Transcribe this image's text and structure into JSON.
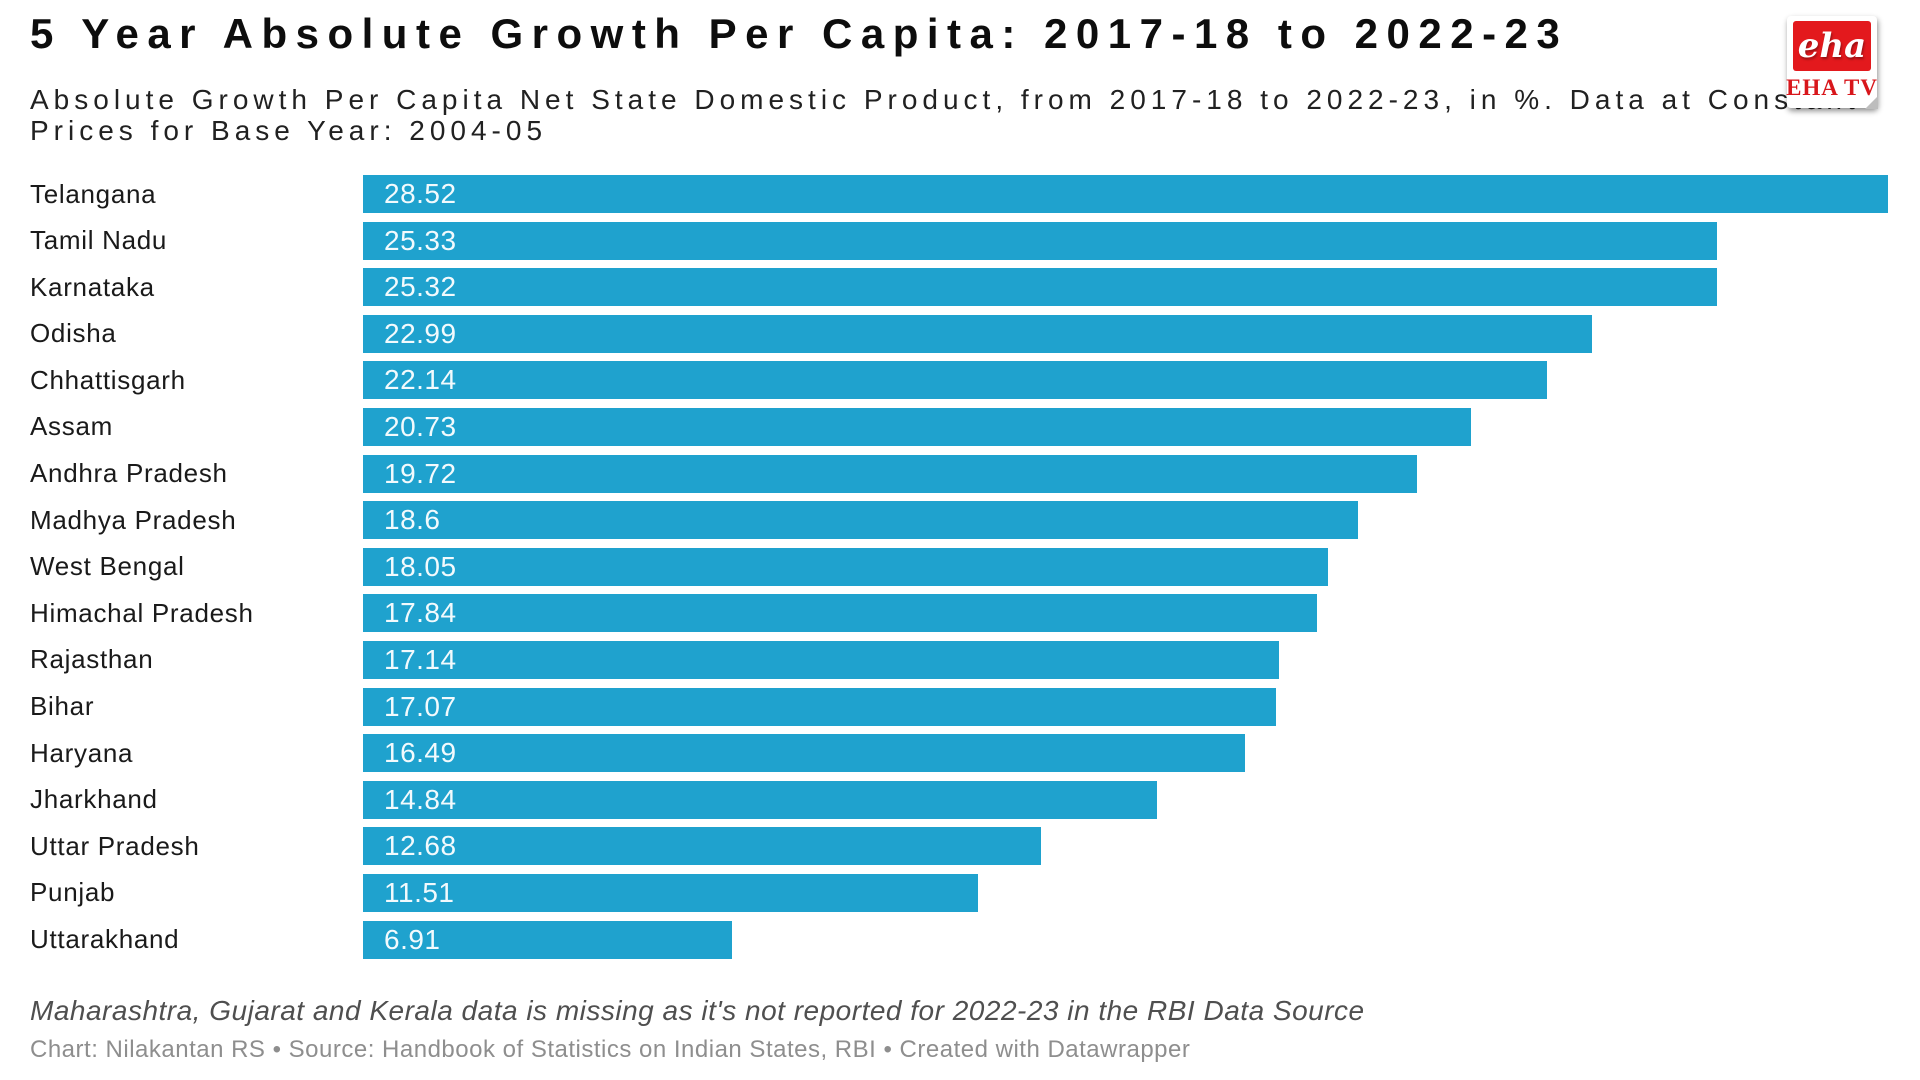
{
  "chart_data": {
    "type": "bar",
    "orientation": "horizontal",
    "title": "5 Year Absolute Growth Per Capita: 2017-18 to 2022-23",
    "subtitle": "Absolute Growth Per Capita Net State Domestic Product, from 2017-18 to 2022-23, in %. Data at Constant Prices for Base Year: 2004-05",
    "categories": [
      "Telangana",
      "Tamil Nadu",
      "Karnataka",
      "Odisha",
      "Chhattisgarh",
      "Assam",
      "Andhra Pradesh",
      "Madhya Pradesh",
      "West Bengal",
      "Himachal Pradesh",
      "Rajasthan",
      "Bihar",
      "Haryana",
      "Jharkhand",
      "Uttar Pradesh",
      "Punjab",
      "Uttarakhand"
    ],
    "values": [
      28.52,
      25.33,
      25.32,
      22.99,
      22.14,
      20.73,
      19.72,
      18.6,
      18.05,
      17.84,
      17.14,
      17.07,
      16.49,
      14.84,
      12.68,
      11.51,
      6.91
    ],
    "xlabel": "",
    "ylabel": "",
    "xlim": [
      0,
      28.52
    ],
    "grid": false,
    "legend": false,
    "bar_color": "#1FA2CE",
    "value_label_position": "inside-left",
    "value_label_color": "#f2fafd",
    "note": "Maharashtra, Gujarat and Kerala data is missing as it's not reported for 2022-23 in the RBI Data Source",
    "credit": "Chart: Nilakantan RS • Source: Handbook of Statistics on Indian States, RBI • Created with Datawrapper"
  },
  "logo": {
    "script": "eha",
    "caption": "EHA TV",
    "red": "#E3191D"
  }
}
